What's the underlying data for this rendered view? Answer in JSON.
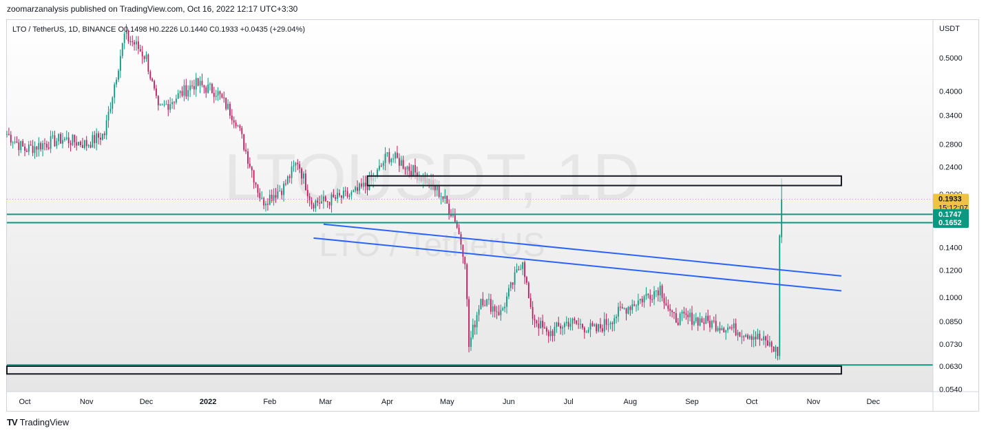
{
  "header": {
    "publisher_line": "zoomarzanalysis published on TradingView.com, Oct 16, 2022 12:17 UTC+3:30"
  },
  "footer": {
    "brand_logo": "TV",
    "brand": "TradingView"
  },
  "chart_data": {
    "type": "candlestick",
    "legend_line": "LTO / TetherUS, 1D, BINANCE  O0.1498  H0.2226  L0.1440  C0.1933  +0.0435 (+29.04%)",
    "watermark_symbol": "LTOUSDT, 1D",
    "watermark_name": "LTO / TetherUS",
    "y_unit": "USDT",
    "y_scale": "log",
    "y_range": [
      0.054,
      0.64
    ],
    "y_ticks": [
      0.5,
      0.4,
      0.34,
      0.28,
      0.24,
      0.2,
      0.14,
      0.12,
      0.1,
      0.085,
      0.073,
      0.063,
      0.054
    ],
    "y_tick_labels": [
      "0.5000",
      "0.4000",
      "0.3400",
      "0.2800",
      "0.2400",
      "0.2000",
      "0.1400",
      "0.1200",
      "0.1000",
      "0.0850",
      "0.0730",
      "0.0630",
      "0.0540"
    ],
    "x_range": [
      "2021-09-22",
      "2022-12-31"
    ],
    "x_ticks": [
      {
        "date": "2021-10-01",
        "label": "Oct"
      },
      {
        "date": "2021-11-01",
        "label": "Nov"
      },
      {
        "date": "2021-12-01",
        "label": "Dec"
      },
      {
        "date": "2022-01-01",
        "label": "2022"
      },
      {
        "date": "2022-02-01",
        "label": "Feb"
      },
      {
        "date": "2022-03-01",
        "label": "Mar"
      },
      {
        "date": "2022-04-01",
        "label": "Apr"
      },
      {
        "date": "2022-05-01",
        "label": "May"
      },
      {
        "date": "2022-06-01",
        "label": "Jun"
      },
      {
        "date": "2022-07-01",
        "label": "Jul"
      },
      {
        "date": "2022-08-01",
        "label": "Aug"
      },
      {
        "date": "2022-09-01",
        "label": "Sep"
      },
      {
        "date": "2022-10-01",
        "label": "Oct"
      },
      {
        "date": "2022-11-01",
        "label": "Nov"
      },
      {
        "date": "2022-12-01",
        "label": "Dec"
      }
    ],
    "price_path": [
      [
        "2021-09-22",
        0.3
      ],
      [
        "2021-10-01",
        0.27
      ],
      [
        "2021-10-10",
        0.28
      ],
      [
        "2021-10-20",
        0.29
      ],
      [
        "2021-11-01",
        0.28
      ],
      [
        "2021-11-10",
        0.3
      ],
      [
        "2021-11-15",
        0.42
      ],
      [
        "2021-11-20",
        0.58
      ],
      [
        "2021-11-25",
        0.55
      ],
      [
        "2021-12-01",
        0.5
      ],
      [
        "2021-12-07",
        0.35
      ],
      [
        "2021-12-15",
        0.38
      ],
      [
        "2021-12-25",
        0.42
      ],
      [
        "2022-01-05",
        0.4
      ],
      [
        "2022-01-15",
        0.33
      ],
      [
        "2022-01-28",
        0.19
      ],
      [
        "2022-02-08",
        0.21
      ],
      [
        "2022-02-15",
        0.25
      ],
      [
        "2022-02-22",
        0.19
      ],
      [
        "2022-02-28",
        0.19
      ],
      [
        "2022-03-15",
        0.2
      ],
      [
        "2022-03-25",
        0.22
      ],
      [
        "2022-04-01",
        0.26
      ],
      [
        "2022-04-07",
        0.25
      ],
      [
        "2022-04-20",
        0.22
      ],
      [
        "2022-04-28",
        0.2
      ],
      [
        "2022-05-05",
        0.17
      ],
      [
        "2022-05-10",
        0.13
      ],
      [
        "2022-05-12",
        0.072
      ],
      [
        "2022-05-18",
        0.1
      ],
      [
        "2022-05-28",
        0.09
      ],
      [
        "2022-06-08",
        0.13
      ],
      [
        "2022-06-12",
        0.09
      ],
      [
        "2022-06-20",
        0.078
      ],
      [
        "2022-07-01",
        0.085
      ],
      [
        "2022-07-15",
        0.08
      ],
      [
        "2022-07-28",
        0.092
      ],
      [
        "2022-08-08",
        0.1
      ],
      [
        "2022-08-16",
        0.107
      ],
      [
        "2022-08-22",
        0.087
      ],
      [
        "2022-09-01",
        0.087
      ],
      [
        "2022-09-15",
        0.083
      ],
      [
        "2022-10-01",
        0.078
      ],
      [
        "2022-10-11",
        0.072
      ],
      [
        "2022-10-14",
        0.069
      ],
      [
        "2022-10-15",
        0.15
      ],
      [
        "2022-10-16",
        0.1933
      ]
    ],
    "last_candle": {
      "date": "2022-10-16",
      "open": 0.1498,
      "high": 0.2226,
      "low": 0.144,
      "close": 0.1933
    },
    "price_badges": [
      {
        "value": 0.1933,
        "label": "0.1933",
        "sublabel": "15:12:07",
        "color": "#f0c244"
      },
      {
        "value": 0.1747,
        "label": "0.1747",
        "color": "#089981"
      },
      {
        "value": 0.1652,
        "label": "0.1652",
        "color": "#089981"
      }
    ],
    "horizontal_lines": [
      {
        "value": 0.1747,
        "color": "#089981"
      },
      {
        "value": 0.1652,
        "color": "#089981"
      },
      {
        "value": 0.0635,
        "color": "#089981"
      }
    ],
    "last_price_line": {
      "value": 0.1933,
      "color": "#f0a030",
      "style": "dotted"
    },
    "zones": [
      {
        "from": "2022-03-22",
        "to": "2022-11-15",
        "low": 0.212,
        "high": 0.226
      },
      {
        "from": "2021-09-22",
        "to": "2022-11-15",
        "low": 0.0598,
        "high": 0.063
      }
    ],
    "trendlines": [
      {
        "start": [
          "2022-02-28",
          0.1635
        ],
        "end": [
          "2022-11-15",
          0.1155
        ],
        "color": "#2962ff"
      },
      {
        "start": [
          "2022-02-23",
          0.149
        ],
        "end": [
          "2022-11-15",
          0.1045
        ],
        "color": "#2962ff"
      }
    ],
    "colors": {
      "up": "#089981",
      "down": "#c2185b",
      "accent": "#2962ff"
    }
  }
}
